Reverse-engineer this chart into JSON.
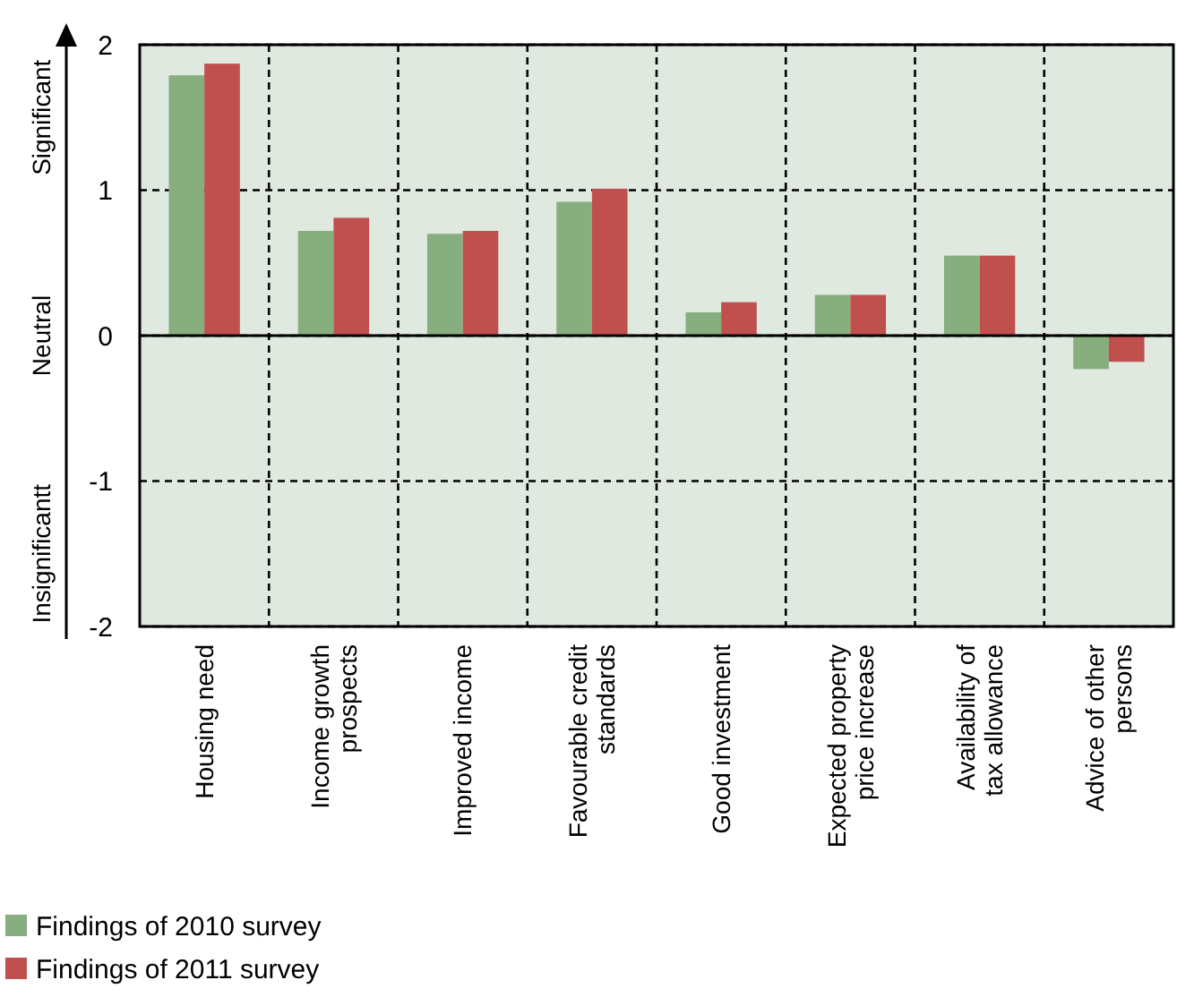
{
  "chart_data": {
    "type": "bar",
    "categories": [
      "Housing need",
      "Income growth prospects",
      "Improved income",
      "Favourable credit standards",
      "Good investment",
      "Expected property price increase",
      "Availability of tax allowance",
      "Advice of other persons"
    ],
    "series": [
      {
        "name": "Findings of 2010 survey",
        "color": "#87ae7e",
        "values": [
          1.79,
          0.72,
          0.7,
          0.92,
          0.16,
          0.28,
          0.55,
          -0.23
        ]
      },
      {
        "name": "Findings of 2011 survey",
        "color": "#c0504d",
        "values": [
          1.87,
          0.81,
          0.72,
          1.01,
          0.23,
          0.28,
          0.55,
          -0.18
        ]
      }
    ],
    "ylim": [
      -2,
      2
    ],
    "yticks": [
      -2,
      -1,
      0,
      1,
      2
    ],
    "grid": true,
    "legend": "bottom left",
    "annotations": [
      "Significant",
      "Neutral",
      "Insignificantt"
    ]
  }
}
